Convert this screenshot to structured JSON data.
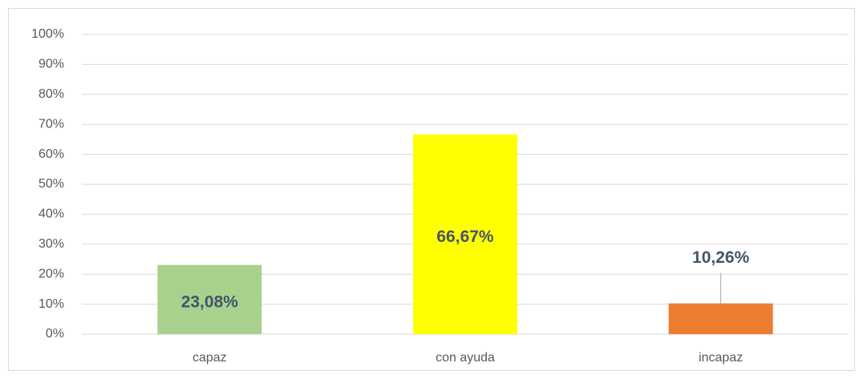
{
  "chart_data": {
    "type": "bar",
    "categories": [
      "capaz",
      "con ayuda",
      "incapaz"
    ],
    "values": [
      23.08,
      66.67,
      10.26
    ],
    "value_labels": [
      "23,08%",
      "66,67%",
      "10,26%"
    ],
    "colors": [
      "#a9d18e",
      "#ffff00",
      "#ed7d31"
    ],
    "ylim": [
      0,
      100
    ],
    "yticks": [
      {
        "value": 0,
        "label": "0%"
      },
      {
        "value": 10,
        "label": "10%"
      },
      {
        "value": 20,
        "label": "20%"
      },
      {
        "value": 30,
        "label": "30%"
      },
      {
        "value": 40,
        "label": "40%"
      },
      {
        "value": 50,
        "label": "50%"
      },
      {
        "value": 60,
        "label": "60%"
      },
      {
        "value": 70,
        "label": "70%"
      },
      {
        "value": 80,
        "label": "80%"
      },
      {
        "value": 90,
        "label": "90%"
      },
      {
        "value": 100,
        "label": "100%"
      }
    ],
    "grid": true
  }
}
